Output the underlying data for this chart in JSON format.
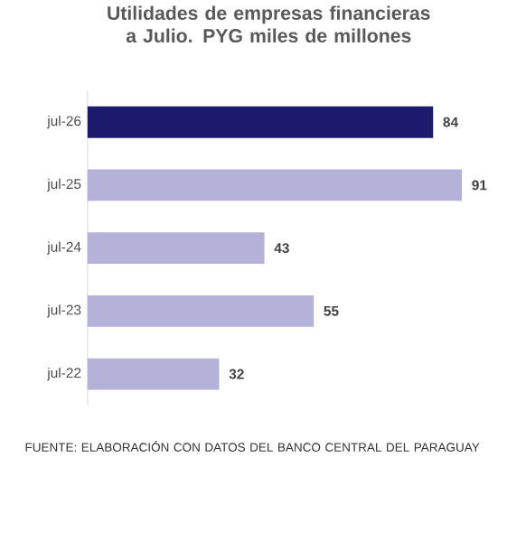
{
  "chart_data": {
    "type": "bar",
    "orientation": "horizontal",
    "title": "Utilidades de empresas financieras a Julio. PYG miles de millones",
    "categories": [
      "jul-26",
      "jul-25",
      "jul-24",
      "jul-23",
      "jul-22"
    ],
    "values": [
      84,
      91,
      43,
      55,
      32
    ],
    "colors": [
      "#1c1a6b",
      "#b4b2d8",
      "#b4b2d8",
      "#b4b2d8",
      "#b4b2d8"
    ],
    "data_labels": true,
    "annotations": [
      "FUENTE: ELABORACIÓN CON DATOS DEL BANCO CENTRAL DEL PARAGUAY"
    ]
  }
}
